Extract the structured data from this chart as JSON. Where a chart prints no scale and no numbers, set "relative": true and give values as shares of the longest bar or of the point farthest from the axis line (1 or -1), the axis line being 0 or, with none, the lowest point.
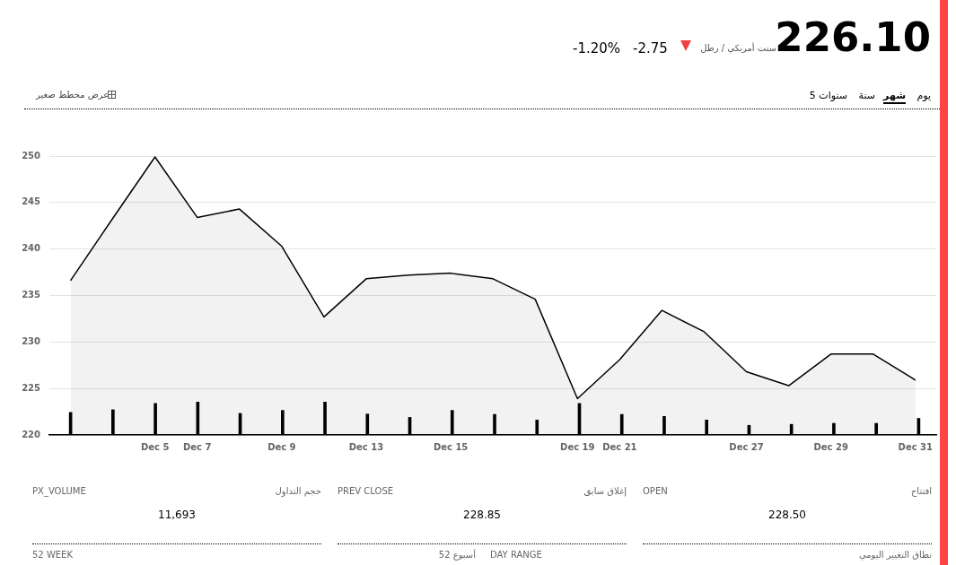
{
  "chart_data": [
    {
      "type": "other",
      "annotations": [
        "226.10",
        "سنت أمريكي / رطل",
        "-2.75",
        "-1.20%",
        "يوم",
        "شهر",
        "سنة",
        "5 سنوات",
        "عرض مخطط صغير"
      ]
    },
    {
      "type": "area",
      "categories": [
        null,
        null,
        "Dec 5",
        "Dec 7",
        null,
        "Dec 9",
        null,
        "Dec 13",
        null,
        "Dec 15",
        null,
        null,
        "Dec 19",
        "Dec 21",
        null,
        null,
        "Dec 27",
        null,
        "Dec 29",
        null,
        "Dec 31"
      ],
      "series": [
        {
          "color": "#000000",
          "values": [
            236.6,
            243.3,
            249.9,
            243.4,
            244.3,
            240.3,
            232.7,
            236.8,
            237.2,
            237.4,
            236.8,
            234.6,
            223.9,
            228.1,
            233.4,
            231.1,
            226.8,
            225.3,
            228.7,
            228.7,
            225.9
          ]
        }
      ],
      "ylim": [
        220,
        250
      ],
      "yticks": [
        220,
        225,
        230,
        235,
        240,
        245,
        250
      ],
      "grid": "y",
      "legend": false
    },
    {
      "type": "bar",
      "relative": true,
      "tick_labels": false,
      "categories": [
        null,
        null,
        null,
        null,
        null,
        null,
        null,
        null,
        null,
        null,
        null,
        null,
        null,
        null,
        null,
        null,
        null,
        null,
        null,
        null,
        null
      ],
      "series": [
        {
          "color": "#000000",
          "values": [
            0.68,
            0.76,
            0.95,
            1,
            0.65,
            0.74,
            1,
            0.63,
            0.53,
            0.74,
            0.62,
            0.45,
            0.95,
            0.62,
            0.56,
            0.45,
            0.29,
            0.32,
            0.35,
            0.35,
            0.5
          ]
        }
      ],
      "legend": false
    },
    {
      "type": "other",
      "annotations": [
        "PX_VOLUME",
        "حجم التداول",
        "11,693",
        "PREV CLOSE",
        "إغلاق سابق",
        "228.85",
        "OPEN",
        "افتتاح",
        "228.50",
        "52 WEEK",
        "52 أسبوع",
        "DAY RANGE",
        "نطاق التغيير اليومي"
      ]
    }
  ]
}
